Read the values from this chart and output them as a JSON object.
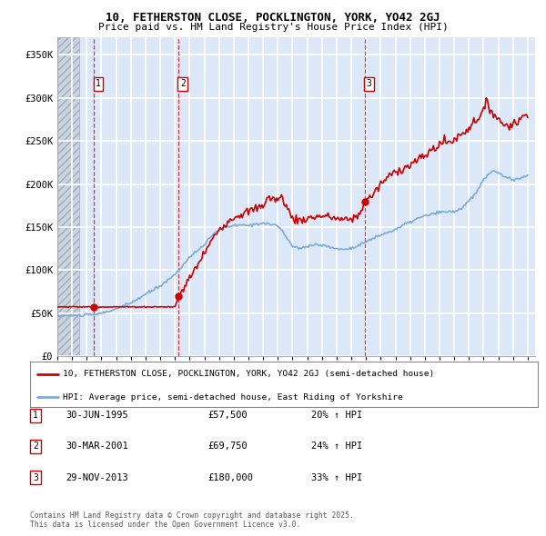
{
  "title": "10, FETHERSTON CLOSE, POCKLINGTON, YORK, YO42 2GJ",
  "subtitle": "Price paid vs. HM Land Registry's House Price Index (HPI)",
  "legend_line1": "10, FETHERSTON CLOSE, POCKLINGTON, YORK, YO42 2GJ (semi-detached house)",
  "legend_line2": "HPI: Average price, semi-detached house, East Riding of Yorkshire",
  "transactions": [
    {
      "num": 1,
      "date": "30-JUN-1995",
      "price": 57500,
      "hpi_pct": "20% ↑ HPI",
      "year": 1995.5
    },
    {
      "num": 2,
      "date": "30-MAR-2001",
      "price": 69750,
      "hpi_pct": "24% ↑ HPI",
      "year": 2001.25
    },
    {
      "num": 3,
      "date": "29-NOV-2013",
      "price": 180000,
      "hpi_pct": "33% ↑ HPI",
      "year": 2013.92
    }
  ],
  "ylim": [
    0,
    370000
  ],
  "yticks": [
    0,
    50000,
    100000,
    150000,
    200000,
    250000,
    300000,
    350000
  ],
  "ytick_labels": [
    "£0",
    "£50K",
    "£100K",
    "£150K",
    "£200K",
    "£250K",
    "£300K",
    "£350K"
  ],
  "xlim_start": 1993.0,
  "xlim_end": 2025.5,
  "hatch_end": 1994.5,
  "property_color": "#cc0000",
  "hpi_color": "#7aaadd",
  "copyright": "Contains HM Land Registry data © Crown copyright and database right 2025.\nThis data is licensed under the Open Government Licence v3.0.",
  "bg_color": "#dce8f8",
  "hatch_face": "#c8d4e4",
  "grid_color": "#ffffff"
}
